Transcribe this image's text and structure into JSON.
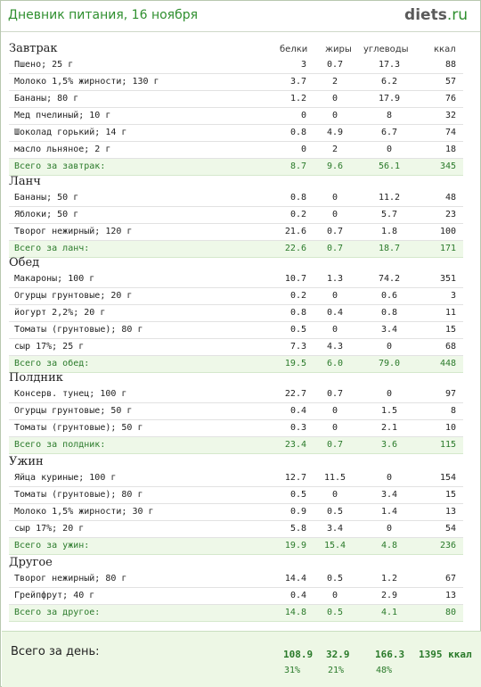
{
  "header": {
    "title": "Дневник питания, 16 ноября",
    "logo_main": "diets",
    "logo_suffix": ".ru"
  },
  "columns": {
    "protein": "белки",
    "fat": "жиры",
    "carbs": "углеводы",
    "kcal": "ккал"
  },
  "sections": [
    {
      "title": "Завтрак",
      "rows": [
        [
          "Пшено; 25 г",
          "3",
          "0.7",
          "17.3",
          "88"
        ],
        [
          "Молоко 1,5% жирности; 130 г",
          "3.7",
          "2",
          "6.2",
          "57"
        ],
        [
          "Бананы; 80 г",
          "1.2",
          "0",
          "17.9",
          "76"
        ],
        [
          "Мед пчелиный; 10 г",
          "0",
          "0",
          "8",
          "32"
        ],
        [
          "Шоколад горький; 14 г",
          "0.8",
          "4.9",
          "6.7",
          "74"
        ],
        [
          "масло льняное; 2 г",
          "0",
          "2",
          "0",
          "18"
        ]
      ],
      "total": [
        "Всего за завтрак:",
        "8.7",
        "9.6",
        "56.1",
        "345"
      ]
    },
    {
      "title": "Ланч",
      "rows": [
        [
          "Бананы; 50 г",
          "0.8",
          "0",
          "11.2",
          "48"
        ],
        [
          "Яблоки; 50 г",
          "0.2",
          "0",
          "5.7",
          "23"
        ],
        [
          "Творог нежирный; 120 г",
          "21.6",
          "0.7",
          "1.8",
          "100"
        ]
      ],
      "total": [
        "Всего за ланч:",
        "22.6",
        "0.7",
        "18.7",
        "171"
      ]
    },
    {
      "title": "Обед",
      "rows": [
        [
          "Макароны; 100 г",
          "10.7",
          "1.3",
          "74.2",
          "351"
        ],
        [
          "Огурцы грунтовые; 20 г",
          "0.2",
          "0",
          "0.6",
          "3"
        ],
        [
          "йогурт 2,2%; 20 г",
          "0.8",
          "0.4",
          "0.8",
          "11"
        ],
        [
          "Томаты (грунтовые); 80 г",
          "0.5",
          "0",
          "3.4",
          "15"
        ],
        [
          "сыр 17%; 25 г",
          "7.3",
          "4.3",
          "0",
          "68"
        ]
      ],
      "total": [
        "Всего за обед:",
        "19.5",
        "6.0",
        "79.0",
        "448"
      ]
    },
    {
      "title": "Полдник",
      "rows": [
        [
          "Консерв. тунец; 100 г",
          "22.7",
          "0.7",
          "0",
          "97"
        ],
        [
          "Огурцы грунтовые; 50 г",
          "0.4",
          "0",
          "1.5",
          "8"
        ],
        [
          "Томаты (грунтовые); 50 г",
          "0.3",
          "0",
          "2.1",
          "10"
        ]
      ],
      "total": [
        "Всего за полдник:",
        "23.4",
        "0.7",
        "3.6",
        "115"
      ]
    },
    {
      "title": "Ужин",
      "rows": [
        [
          "Яйца куриные; 100 г",
          "12.7",
          "11.5",
          "0",
          "154"
        ],
        [
          "Томаты (грунтовые); 80 г",
          "0.5",
          "0",
          "3.4",
          "15"
        ],
        [
          "Молоко 1,5% жирности; 30 г",
          "0.9",
          "0.5",
          "1.4",
          "13"
        ],
        [
          "сыр 17%; 20 г",
          "5.8",
          "3.4",
          "0",
          "54"
        ]
      ],
      "total": [
        "Всего за ужин:",
        "19.9",
        "15.4",
        "4.8",
        "236"
      ]
    },
    {
      "title": "Другое",
      "rows": [
        [
          "Творог нежирный; 80 г",
          "14.4",
          "0.5",
          "1.2",
          "67"
        ],
        [
          "Грейпфрут; 40 г",
          "0.4",
          "0",
          "2.9",
          "13"
        ]
      ],
      "total": [
        "Всего за другое:",
        "14.8",
        "0.5",
        "4.1",
        "80"
      ]
    }
  ],
  "day_total": {
    "label": "Всего за день:",
    "protein": "108.9",
    "fat": "32.9",
    "carbs": "166.3",
    "kcal": "1395 ккал",
    "protein_pct": "31%",
    "fat_pct": "21%",
    "carbs_pct": "48%"
  }
}
